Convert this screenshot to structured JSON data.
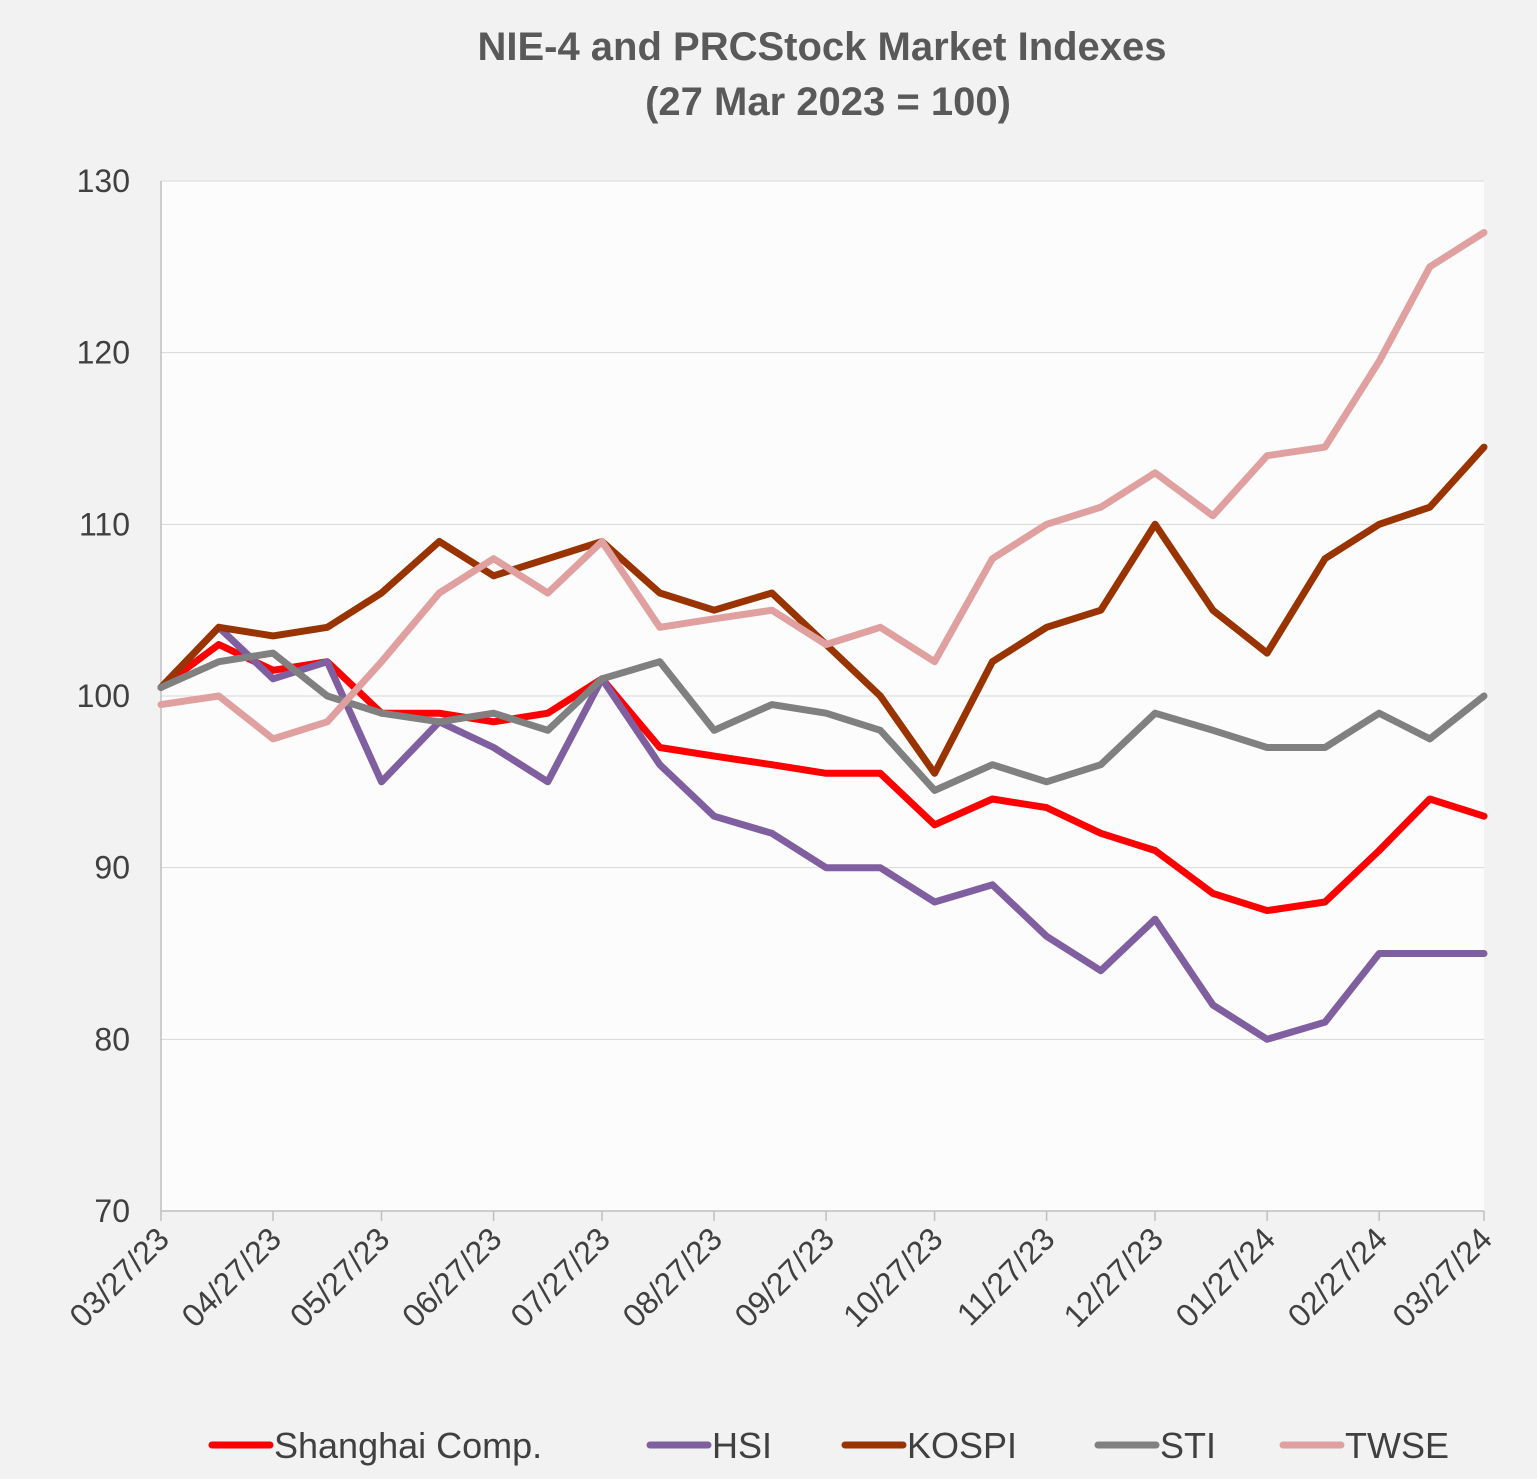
{
  "chart_data": {
    "type": "line",
    "title": "NIE-4 and PRCStock Market Indexes",
    "subtitle": "(27 Mar 2023 = 100)",
    "x": [
      "03/27/23",
      "04/12/23",
      "04/27/23",
      "05/12/23",
      "05/27/23",
      "06/12/23",
      "06/27/23",
      "07/12/23",
      "07/27/23",
      "08/12/23",
      "08/27/23",
      "09/12/23",
      "09/27/23",
      "10/12/23",
      "10/27/23",
      "11/12/23",
      "11/27/23",
      "12/12/23",
      "12/27/23",
      "01/12/24",
      "01/27/24",
      "02/12/24",
      "02/27/24",
      "03/12/24",
      "03/27/24"
    ],
    "series": [
      {
        "name": "Shanghai Comp.",
        "color": "#ff0000",
        "values": [
          100.5,
          103,
          101.5,
          102,
          99,
          99,
          98.5,
          99,
          101,
          97,
          96.5,
          96,
          95.5,
          95.5,
          92.5,
          94,
          93.5,
          92,
          91,
          88.5,
          87.5,
          88,
          91,
          94,
          93
        ]
      },
      {
        "name": "HSI",
        "color": "#7f5fa0",
        "values": [
          100.5,
          104,
          101,
          102,
          95,
          98.5,
          97,
          95,
          101,
          96,
          93,
          92,
          90,
          90,
          88,
          89,
          86,
          84,
          87,
          82,
          80,
          81,
          85,
          85,
          85
        ]
      },
      {
        "name": "KOSPI",
        "color": "#993300",
        "values": [
          100.5,
          104,
          103.5,
          104,
          106,
          109,
          107,
          108,
          109,
          106,
          105,
          106,
          103,
          100,
          95.5,
          102,
          104,
          105,
          110,
          105,
          102.5,
          108,
          110,
          111,
          114.5
        ]
      },
      {
        "name": "STI",
        "color": "#808080",
        "values": [
          100.5,
          102,
          102.5,
          100,
          99,
          98.5,
          99,
          98,
          101,
          102,
          98,
          99.5,
          99,
          98,
          94.5,
          96,
          95,
          96,
          99,
          98,
          97,
          97,
          99,
          97.5,
          100
        ]
      },
      {
        "name": "TWSE",
        "color": "#e0a0a0",
        "values": [
          99.5,
          100,
          97.5,
          98.5,
          102,
          106,
          108,
          106,
          109,
          104,
          104.5,
          105,
          103,
          104,
          102,
          108,
          110,
          111,
          113,
          110.5,
          114,
          114.5,
          119.5,
          125,
          127
        ]
      }
    ],
    "xlim": [
      "03/27/23",
      "03/27/24"
    ],
    "xticks": [
      "03/27/23",
      "04/27/23",
      "05/27/23",
      "06/27/23",
      "07/27/23",
      "08/27/23",
      "09/27/23",
      "10/27/23",
      "11/27/23",
      "12/27/23",
      "01/27/24",
      "02/27/24",
      "03/27/24"
    ],
    "ylim": [
      70,
      130
    ],
    "yticks": [
      70,
      80,
      90,
      100,
      110,
      120,
      130
    ],
    "grid": true,
    "legend": "bottom"
  }
}
